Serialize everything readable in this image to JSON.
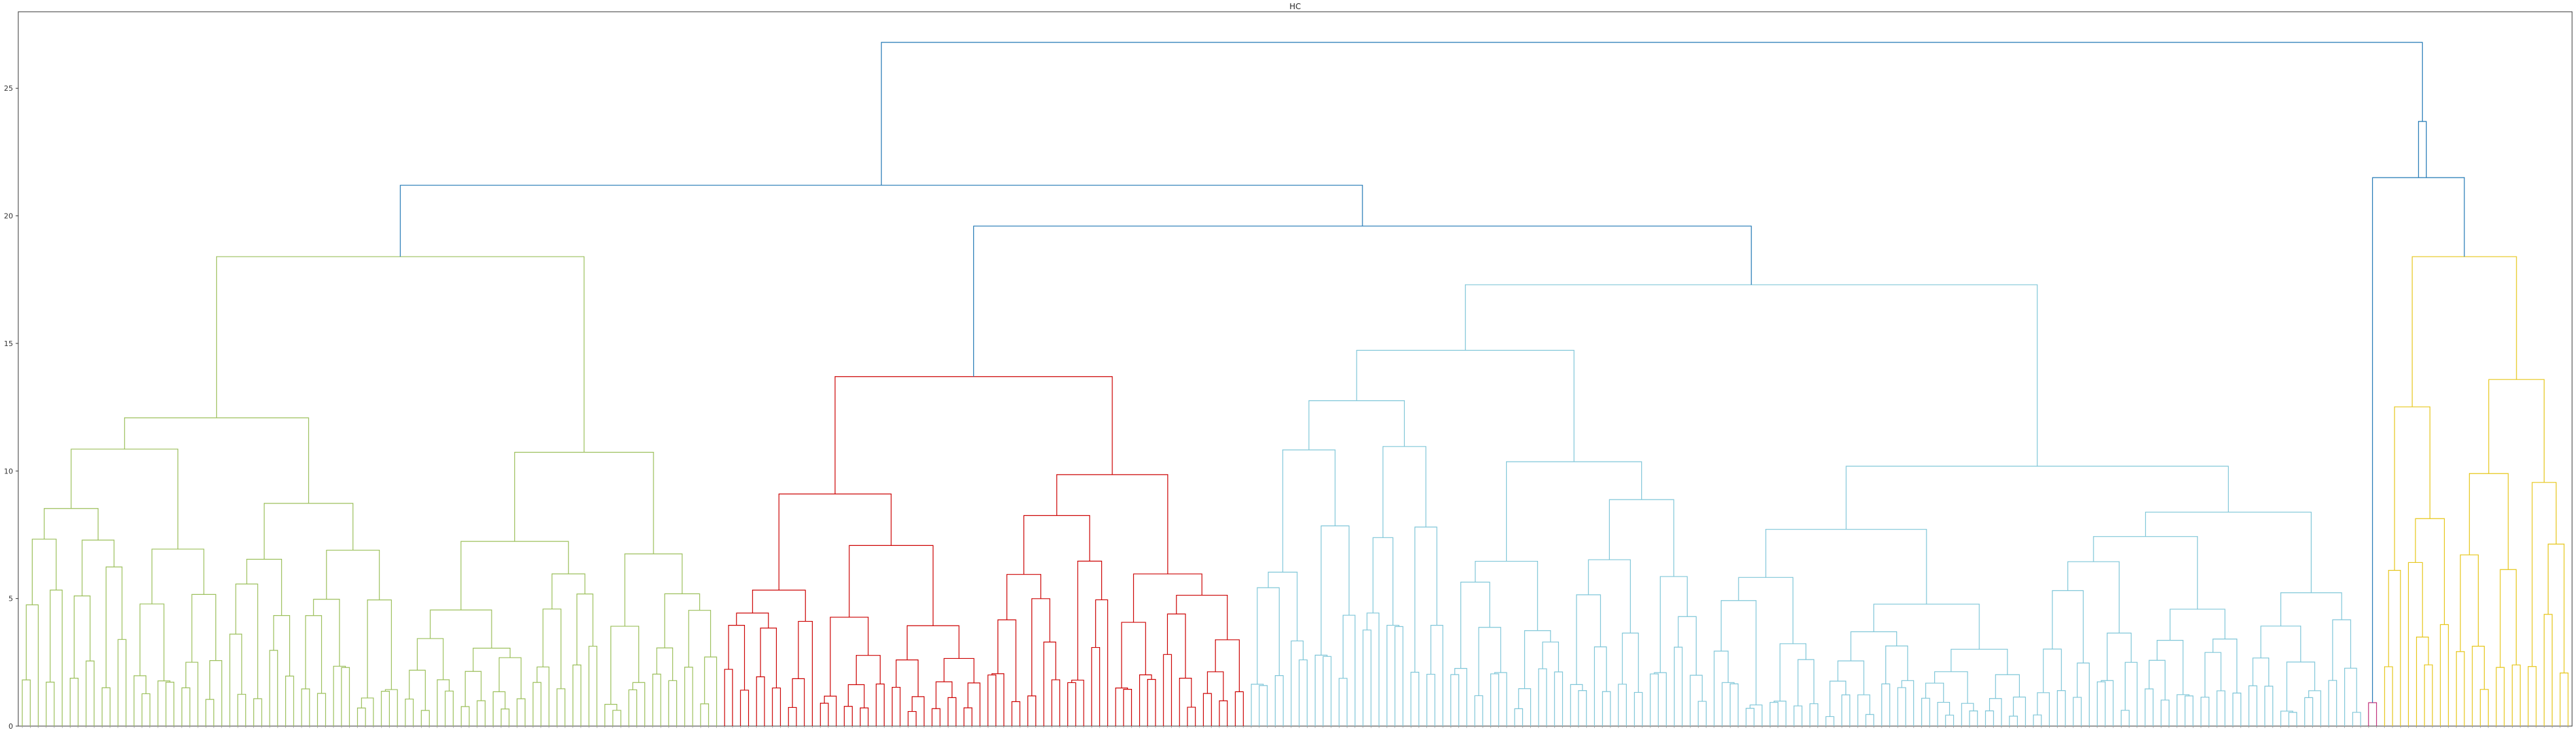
{
  "chart_data": {
    "type": "dendrogram",
    "title": "HC",
    "xlabel": "",
    "ylabel": "",
    "ylim": [
      0,
      28
    ],
    "yticks": [
      0,
      5,
      10,
      15,
      20,
      25
    ],
    "grid": false,
    "leaf_count": 320,
    "cluster_colors": {
      "green": "#9bbf5a",
      "red": "#cc0000",
      "cyan": "#7fc6d8",
      "magenta": "#c0307a",
      "yellow": "#e6c619",
      "link": "#1f77b4"
    },
    "clusters": [
      {
        "color": "green",
        "leaf_range": [
          0,
          88
        ],
        "max_height": 18.4
      },
      {
        "color": "red",
        "leaf_range": [
          88,
          154
        ],
        "max_height": 13.7
      },
      {
        "color": "cyan",
        "leaf_range": [
          154,
          294
        ],
        "max_height": 17.3
      },
      {
        "color": "magenta",
        "leaf_range": [
          294,
          296
        ],
        "max_height": 1.5
      },
      {
        "color": "yellow",
        "leaf_range": [
          296,
          320
        ],
        "max_height": 18.4
      }
    ],
    "top_links": [
      {
        "left": "green",
        "right": "red+cyan",
        "height": 21.2
      },
      {
        "left": "red",
        "right": "cyan",
        "height": 19.6
      },
      {
        "left": "magenta",
        "right": "yellow",
        "height": 21.5
      },
      {
        "left": "magenta+yellow",
        "right": "root-side",
        "height": 23.7
      },
      {
        "left": "green+red+cyan",
        "right": "magenta+yellow",
        "height": 26.8
      }
    ]
  }
}
